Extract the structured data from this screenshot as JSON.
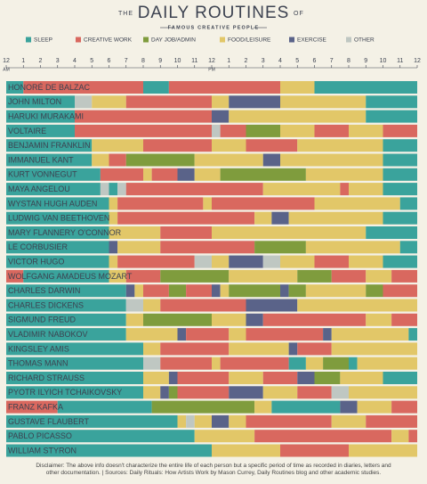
{
  "chart_data": {
    "type": "gantt",
    "title_prefix": "THE",
    "title": "DAILY ROUTINES",
    "title_suffix": "OF",
    "subtitle": "FAMOUS CREATIVE PEOPLE",
    "activities": [
      {
        "name": "SLEEP",
        "color": "#3aa39c"
      },
      {
        "name": "CREATIVE WORK",
        "color": "#d9685f"
      },
      {
        "name": "DAY JOB/ADMIN",
        "color": "#7f9c3d"
      },
      {
        "name": "FOOD/LEISURE",
        "color": "#e2c768"
      },
      {
        "name": "EXERCISE",
        "color": "#5a6389"
      },
      {
        "name": "OTHER",
        "color": "#bfc7c2"
      }
    ],
    "xlim": [
      0,
      24
    ],
    "xticks": [
      {
        "value": 0,
        "label": "12"
      },
      1,
      2,
      3,
      4,
      5,
      6,
      7,
      8,
      9,
      10,
      11,
      12,
      {
        "value": 13,
        "label": "1"
      },
      {
        "value": 14,
        "label": "2"
      },
      {
        "value": 15,
        "label": "3"
      },
      {
        "value": 16,
        "label": "4"
      },
      {
        "value": 17,
        "label": "5"
      },
      {
        "value": 18,
        "label": "6"
      },
      {
        "value": 19,
        "label": "7"
      },
      {
        "value": 20,
        "label": "8"
      },
      {
        "value": 21,
        "label": "9"
      },
      {
        "value": 22,
        "label": "10"
      },
      {
        "value": 23,
        "label": "11"
      },
      {
        "value": 24,
        "label": "12"
      }
    ],
    "am_label": "AM",
    "pm_label": "PM",
    "rows": [
      {
        "name": "HONORÉ DE BALZAC",
        "blocks": [
          [
            0,
            1,
            0
          ],
          [
            1,
            8,
            1
          ],
          [
            8,
            9.5,
            0
          ],
          [
            9.5,
            16,
            1
          ],
          [
            16,
            18,
            3
          ],
          [
            18,
            24,
            0
          ]
        ]
      },
      {
        "name": "JOHN MILTON",
        "blocks": [
          [
            0,
            4,
            0
          ],
          [
            4,
            5,
            5
          ],
          [
            5,
            7,
            3
          ],
          [
            7,
            12,
            1
          ],
          [
            12,
            13,
            3
          ],
          [
            13,
            16,
            4
          ],
          [
            16,
            21,
            3
          ],
          [
            21,
            24,
            0
          ]
        ]
      },
      {
        "name": "HARUKI MURAKAMI",
        "blocks": [
          [
            0,
            4,
            0
          ],
          [
            4,
            12,
            1
          ],
          [
            12,
            13,
            4
          ],
          [
            13,
            21,
            3
          ],
          [
            21,
            24,
            0
          ]
        ]
      },
      {
        "name": "VOLTAIRE",
        "blocks": [
          [
            0,
            4,
            0
          ],
          [
            4,
            12,
            1
          ],
          [
            12,
            12.5,
            5
          ],
          [
            12.5,
            14,
            1
          ],
          [
            14,
            16,
            2
          ],
          [
            16,
            18,
            3
          ],
          [
            18,
            20,
            1
          ],
          [
            20,
            22,
            3
          ],
          [
            22,
            24,
            1
          ]
        ]
      },
      {
        "name": "BENJAMIN FRANKLIN",
        "blocks": [
          [
            0,
            5,
            0
          ],
          [
            5,
            8,
            3
          ],
          [
            8,
            12,
            1
          ],
          [
            12,
            14,
            3
          ],
          [
            14,
            17,
            1
          ],
          [
            17,
            22,
            3
          ],
          [
            22,
            24,
            0
          ]
        ]
      },
      {
        "name": "IMMANUEL KANT",
        "blocks": [
          [
            0,
            5,
            0
          ],
          [
            5,
            6,
            3
          ],
          [
            6,
            7,
            1
          ],
          [
            7,
            11,
            2
          ],
          [
            11,
            15,
            3
          ],
          [
            15,
            16,
            4
          ],
          [
            16,
            22,
            3
          ],
          [
            22,
            24,
            0
          ]
        ]
      },
      {
        "name": "KURT VONNEGUT",
        "blocks": [
          [
            0,
            5.5,
            0
          ],
          [
            5.5,
            8,
            1
          ],
          [
            8,
            8.5,
            3
          ],
          [
            8.5,
            10,
            1
          ],
          [
            10,
            11,
            4
          ],
          [
            11,
            12.5,
            3
          ],
          [
            12.5,
            17.5,
            2
          ],
          [
            17.5,
            22,
            3
          ],
          [
            22,
            24,
            0
          ]
        ]
      },
      {
        "name": "MAYA ANGELOU",
        "blocks": [
          [
            0,
            5.5,
            0
          ],
          [
            5.5,
            6,
            5
          ],
          [
            6,
            6.5,
            0
          ],
          [
            6.5,
            7,
            5
          ],
          [
            7,
            15,
            1
          ],
          [
            15,
            19.5,
            3
          ],
          [
            19.5,
            20,
            1
          ],
          [
            20,
            22,
            3
          ],
          [
            22,
            24,
            0
          ]
        ]
      },
      {
        "name": "WYSTAN HUGH AUDEN",
        "blocks": [
          [
            0,
            6,
            0
          ],
          [
            6,
            6.5,
            3
          ],
          [
            6.5,
            11.5,
            1
          ],
          [
            11.5,
            12,
            3
          ],
          [
            12,
            18,
            1
          ],
          [
            18,
            23,
            3
          ],
          [
            23,
            24,
            0
          ]
        ]
      },
      {
        "name": "LUDWIG VAN BEETHOVEN",
        "blocks": [
          [
            0,
            6,
            0
          ],
          [
            6,
            6.5,
            3
          ],
          [
            6.5,
            14.5,
            1
          ],
          [
            14.5,
            15.5,
            3
          ],
          [
            15.5,
            16.5,
            4
          ],
          [
            16.5,
            22,
            3
          ],
          [
            22,
            24,
            0
          ]
        ]
      },
      {
        "name": "MARY FLANNERY O'CONNOR",
        "blocks": [
          [
            0,
            6,
            0
          ],
          [
            6,
            9,
            3
          ],
          [
            9,
            12,
            1
          ],
          [
            12,
            21,
            3
          ],
          [
            21,
            24,
            0
          ]
        ]
      },
      {
        "name": "LE CORBUSIER",
        "blocks": [
          [
            0,
            6,
            0
          ],
          [
            6,
            6.5,
            4
          ],
          [
            6.5,
            9,
            3
          ],
          [
            9,
            14.5,
            1
          ],
          [
            14.5,
            17.5,
            2
          ],
          [
            17.5,
            23,
            3
          ],
          [
            23,
            24,
            0
          ]
        ]
      },
      {
        "name": "VICTOR HUGO",
        "blocks": [
          [
            0,
            6,
            0
          ],
          [
            6,
            6.5,
            3
          ],
          [
            6.5,
            11,
            1
          ],
          [
            11,
            12,
            5
          ],
          [
            12,
            13,
            3
          ],
          [
            13,
            15,
            4
          ],
          [
            15,
            16,
            5
          ],
          [
            16,
            18,
            3
          ],
          [
            18,
            20,
            1
          ],
          [
            20,
            22,
            3
          ],
          [
            22,
            24,
            0
          ]
        ]
      },
      {
        "name": "WOLFGANG AMADEUS MOZART",
        "blocks": [
          [
            0,
            1,
            1
          ],
          [
            1,
            6,
            0
          ],
          [
            6,
            7,
            3
          ],
          [
            7,
            9,
            1
          ],
          [
            9,
            13,
            2
          ],
          [
            13,
            17,
            3
          ],
          [
            17,
            19,
            2
          ],
          [
            19,
            21,
            1
          ],
          [
            21,
            22.5,
            3
          ],
          [
            22.5,
            24,
            1
          ]
        ]
      },
      {
        "name": "CHARLES DARWIN",
        "blocks": [
          [
            0,
            7,
            0
          ],
          [
            7,
            7.5,
            4
          ],
          [
            7.5,
            8,
            3
          ],
          [
            8,
            9.5,
            1
          ],
          [
            9.5,
            10.5,
            2
          ],
          [
            10.5,
            12,
            1
          ],
          [
            12,
            12.5,
            4
          ],
          [
            12.5,
            13,
            3
          ],
          [
            13,
            16,
            2
          ],
          [
            16,
            16.5,
            4
          ],
          [
            16.5,
            17.5,
            2
          ],
          [
            17.5,
            21,
            3
          ],
          [
            21,
            22,
            2
          ],
          [
            22,
            24,
            1
          ]
        ]
      },
      {
        "name": "CHARLES DICKENS",
        "blocks": [
          [
            0,
            7,
            0
          ],
          [
            7,
            8,
            5
          ],
          [
            8,
            9,
            3
          ],
          [
            9,
            14,
            1
          ],
          [
            14,
            17,
            4
          ],
          [
            17,
            24,
            3
          ]
        ]
      },
      {
        "name": "SIGMUND FREUD",
        "blocks": [
          [
            0,
            7,
            0
          ],
          [
            7,
            8,
            3
          ],
          [
            8,
            12,
            2
          ],
          [
            12,
            14,
            3
          ],
          [
            14,
            15,
            4
          ],
          [
            15,
            21,
            1
          ],
          [
            21,
            22.5,
            3
          ],
          [
            22.5,
            24,
            1
          ]
        ]
      },
      {
        "name": "VLADIMIR NABOKOV",
        "blocks": [
          [
            0,
            7,
            0
          ],
          [
            7,
            10,
            3
          ],
          [
            10,
            10.5,
            4
          ],
          [
            10.5,
            13,
            1
          ],
          [
            13,
            14,
            3
          ],
          [
            14,
            18.5,
            1
          ],
          [
            18.5,
            19,
            4
          ],
          [
            19,
            23.5,
            3
          ],
          [
            23.5,
            24,
            0
          ]
        ]
      },
      {
        "name": "KINGSLEY AMIS",
        "blocks": [
          [
            0,
            8,
            0
          ],
          [
            8,
            9,
            3
          ],
          [
            9,
            13,
            1
          ],
          [
            13,
            16.5,
            3
          ],
          [
            16.5,
            17,
            4
          ],
          [
            17,
            19,
            1
          ],
          [
            19,
            24,
            3
          ]
        ]
      },
      {
        "name": "THOMAS MANN",
        "blocks": [
          [
            0,
            8,
            0
          ],
          [
            8,
            9,
            5
          ],
          [
            9,
            12,
            1
          ],
          [
            12,
            12.5,
            3
          ],
          [
            12.5,
            16.5,
            1
          ],
          [
            16.5,
            17.5,
            0
          ],
          [
            17.5,
            18.5,
            3
          ],
          [
            18.5,
            20,
            2
          ],
          [
            20,
            20.5,
            0
          ],
          [
            20.5,
            24,
            3
          ]
        ]
      },
      {
        "name": "RICHARD STRAUSS",
        "blocks": [
          [
            0,
            8,
            0
          ],
          [
            8,
            9.5,
            3
          ],
          [
            9.5,
            10,
            4
          ],
          [
            10,
            13,
            1
          ],
          [
            13,
            15,
            3
          ],
          [
            15,
            17,
            1
          ],
          [
            17,
            18,
            4
          ],
          [
            18,
            19.5,
            2
          ],
          [
            19.5,
            22,
            3
          ],
          [
            22,
            24,
            0
          ]
        ]
      },
      {
        "name": "PYOTR ILYICH TCHAIKOVSKY",
        "blocks": [
          [
            0,
            8,
            0
          ],
          [
            8,
            9,
            3
          ],
          [
            9,
            9.5,
            4
          ],
          [
            9.5,
            10,
            2
          ],
          [
            10,
            13,
            1
          ],
          [
            13,
            15,
            4
          ],
          [
            15,
            17,
            3
          ],
          [
            17,
            19,
            1
          ],
          [
            19,
            20,
            5
          ],
          [
            20,
            24,
            3
          ]
        ]
      },
      {
        "name": "FRANZ KAFKA",
        "blocks": [
          [
            0,
            3,
            1
          ],
          [
            3,
            8.5,
            0
          ],
          [
            8.5,
            14.5,
            2
          ],
          [
            14.5,
            15.5,
            3
          ],
          [
            15.5,
            19.5,
            0
          ],
          [
            19.5,
            20.5,
            4
          ],
          [
            20.5,
            22.5,
            3
          ],
          [
            22.5,
            24,
            1
          ]
        ]
      },
      {
        "name": "GUSTAVE FLAUBERT",
        "blocks": [
          [
            0,
            10,
            0
          ],
          [
            10,
            10.5,
            3
          ],
          [
            10.5,
            11,
            5
          ],
          [
            11,
            12,
            3
          ],
          [
            12,
            13,
            4
          ],
          [
            13,
            14,
            3
          ],
          [
            14,
            19,
            1
          ],
          [
            19,
            21,
            3
          ],
          [
            21,
            24,
            1
          ]
        ]
      },
      {
        "name": "PABLO PICASSO",
        "blocks": [
          [
            0,
            11,
            0
          ],
          [
            11,
            14.5,
            3
          ],
          [
            14.5,
            22.5,
            1
          ],
          [
            22.5,
            23.5,
            3
          ],
          [
            23.5,
            24,
            1
          ]
        ]
      },
      {
        "name": "WILLIAM STYRON",
        "blocks": [
          [
            0,
            12,
            0
          ],
          [
            12,
            16,
            3
          ],
          [
            16,
            20,
            1
          ],
          [
            20,
            24,
            3
          ]
        ]
      }
    ],
    "disclaimer": "Disclaimer: The above info doesn't characterize the entire life of each person but a specific period of time as recorded in diaries, letters and other documentation.  |  Sources: Daily Rituals: How Artists Work by Mason Currey, Daily Routines blog and other academic studies."
  }
}
